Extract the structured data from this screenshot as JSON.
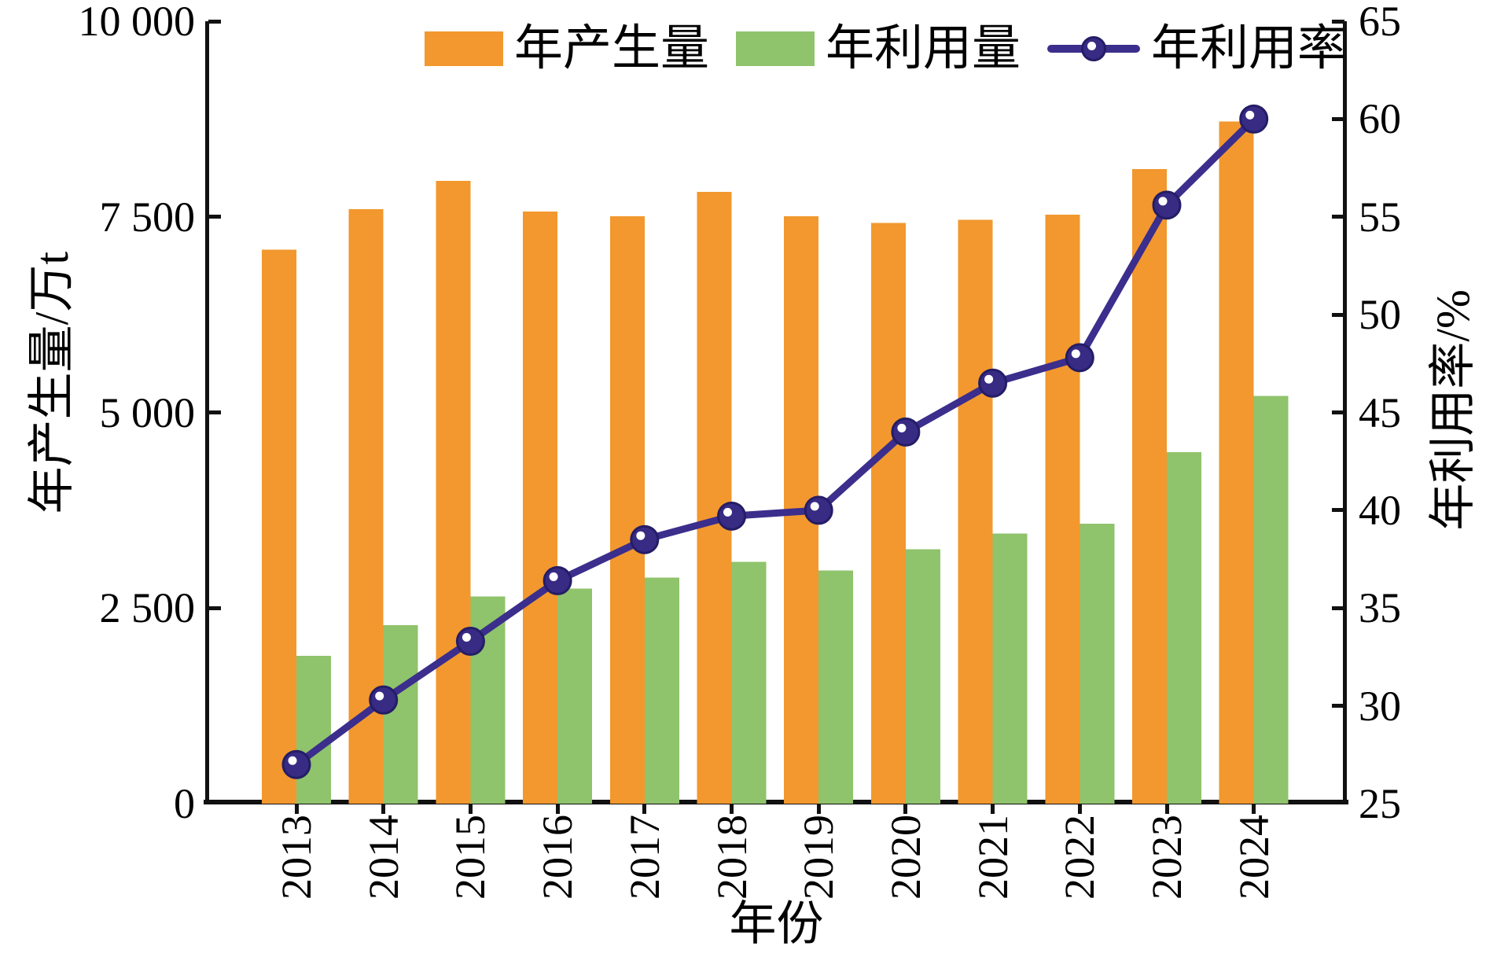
{
  "chart_data": {
    "type": "bar",
    "subtype": "grouped-bars-with-line-on-secondary-axis",
    "title": "",
    "categories": [
      "2013",
      "2014",
      "2015",
      "2016",
      "2017",
      "2018",
      "2019",
      "2020",
      "2021",
      "2022",
      "2023",
      "2024"
    ],
    "series": [
      {
        "name": "年产生量",
        "type": "bar",
        "axis": "left",
        "color": "#F2982E",
        "values": [
          7080,
          7600,
          7960,
          7570,
          7510,
          7820,
          7510,
          7420,
          7460,
          7530,
          8110,
          8720
        ]
      },
      {
        "name": "年利用量",
        "type": "bar",
        "axis": "left",
        "color": "#8FC36C",
        "values": [
          1890,
          2280,
          2650,
          2750,
          2890,
          3090,
          2980,
          3250,
          3450,
          3580,
          4490,
          5210
        ]
      },
      {
        "name": "年利用率",
        "type": "line",
        "axis": "right",
        "color": "#3B2E8C",
        "marker": "sphere",
        "values": [
          27.0,
          30.3,
          33.3,
          36.4,
          38.5,
          39.7,
          40.0,
          44.0,
          46.5,
          47.8,
          55.6,
          60.0
        ]
      }
    ],
    "left_axis": {
      "label": "年产生量/万t",
      "min": 0,
      "max": 10000,
      "tick_values": [
        0,
        2500,
        5000,
        7500,
        10000
      ],
      "tick_labels": [
        "0",
        "2 500",
        "5 000",
        "7 500",
        "10 000"
      ]
    },
    "right_axis": {
      "label": "年利用率/%",
      "min": 25,
      "max": 65,
      "tick_values": [
        25,
        30,
        35,
        40,
        45,
        50,
        55,
        60,
        65
      ],
      "tick_labels": [
        "25",
        "30",
        "35",
        "40",
        "45",
        "50",
        "55",
        "60",
        "65"
      ]
    },
    "x_axis": {
      "label": "年份"
    },
    "legend_position": "top",
    "grid": false
  },
  "legend": {
    "production_label": "年产生量",
    "utilization_label": "年利用量",
    "rate_label": "年利用率"
  },
  "colors": {
    "production_bar": "#F2982E",
    "utilization_bar": "#8FC36C",
    "rate_line": "#3B2E8C",
    "rate_marker": "#372B84",
    "rate_marker_edge": "#241D66",
    "axis": "#111111",
    "background": "#FFFFFF"
  }
}
